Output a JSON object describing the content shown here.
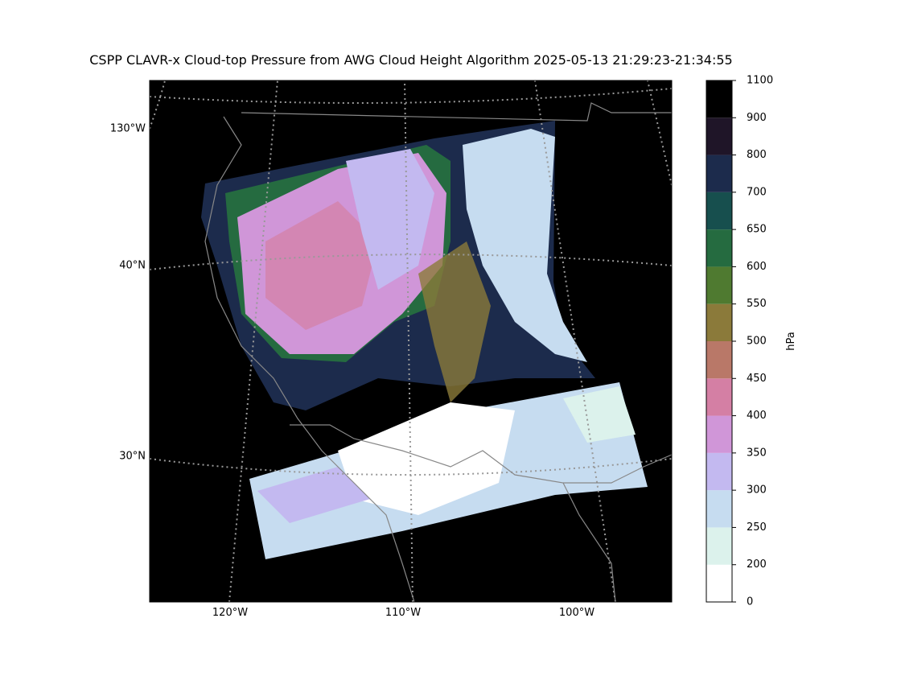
{
  "map": {
    "title": "CSPP CLAVR-x Cloud-top Pressure from AWG Cloud Height Algorithm 2025-05-13 21:29:23-21:34:55",
    "lon_labels": [
      "120°W",
      "110°W",
      "100°W"
    ],
    "lat_labels": [
      "130°W",
      "40°N",
      "30°N"
    ],
    "colorbar": {
      "label": "hPa",
      "ticks": [
        0,
        200,
        250,
        300,
        350,
        400,
        450,
        500,
        550,
        600,
        650,
        700,
        800,
        900,
        1100
      ],
      "colors": [
        "#ffffff",
        "#dcf2ec",
        "#c6dcf0",
        "#c3b9f0",
        "#d096d8",
        "#d47fa4",
        "#b97868",
        "#8b7a3a",
        "#4f7a30",
        "#256b40",
        "#174f4e",
        "#1c2b4c",
        "#1f1528",
        "#000000"
      ]
    }
  }
}
